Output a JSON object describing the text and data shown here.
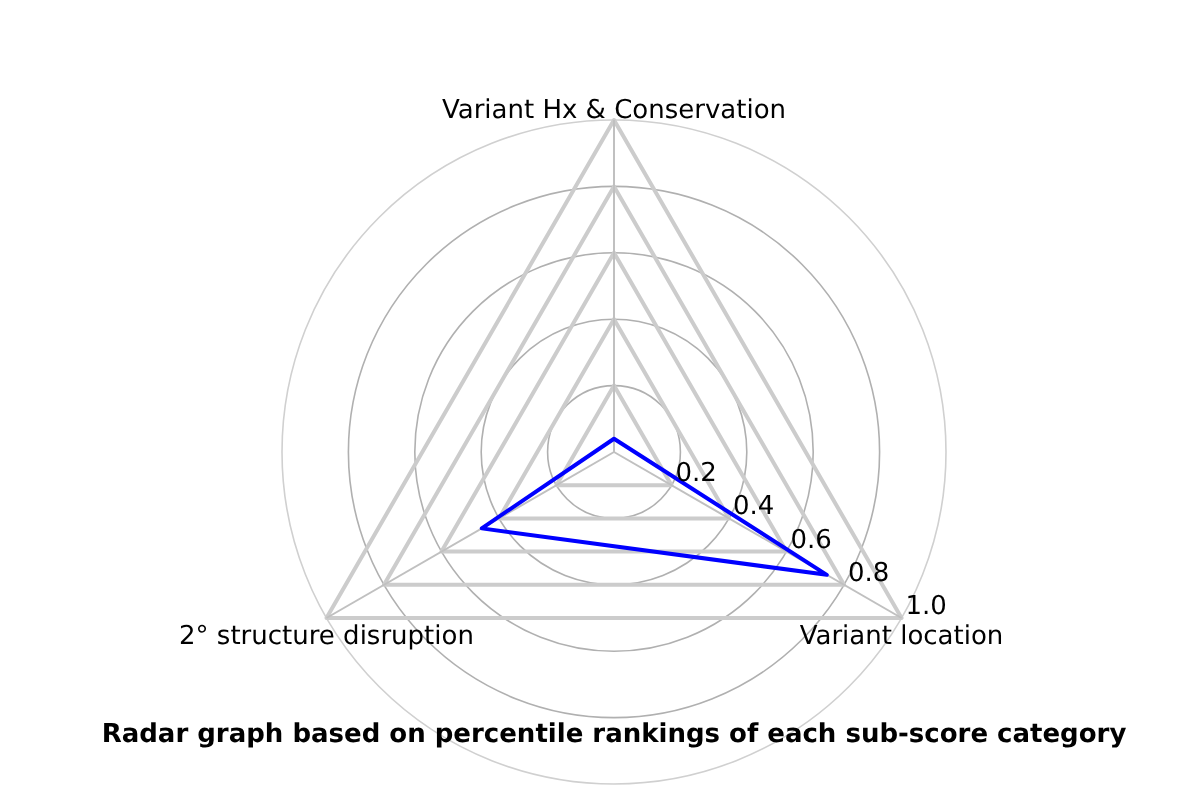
{
  "chart_data": {
    "type": "radar",
    "title": "Radar graph based on percentile rankings of each sub-score category",
    "categories": [
      "Variant Hx & Conservation",
      "Variant location",
      "2° structure disruption"
    ],
    "series": [
      {
        "color": "#0000ff",
        "values": [
          0.04,
          0.74,
          0.46
        ]
      }
    ],
    "ylim": [
      0,
      1
    ],
    "yticks": [
      0.2,
      0.4,
      0.6,
      0.8,
      {
        "value": 1,
        "label": "1.0"
      }
    ],
    "grid": true
  }
}
